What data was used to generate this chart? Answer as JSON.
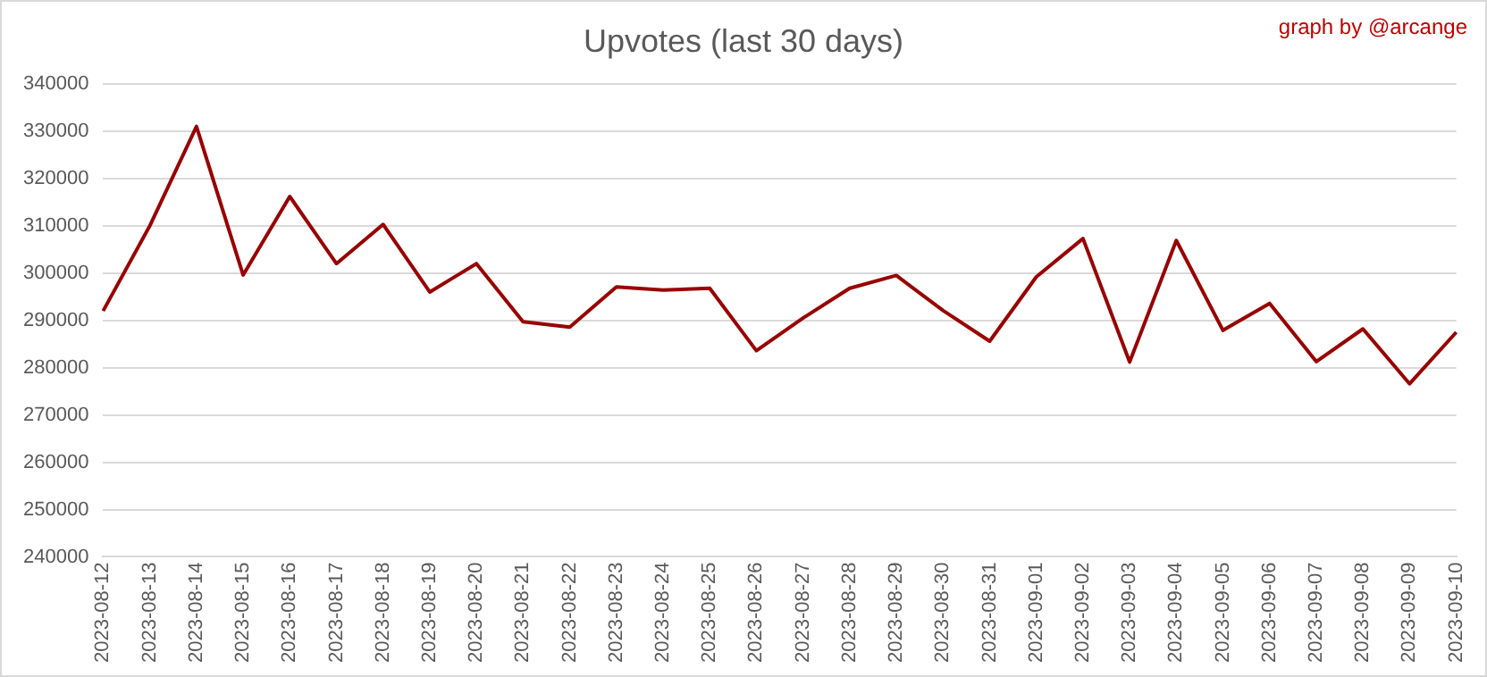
{
  "chart_data": {
    "type": "line",
    "title": "Upvotes (last 30 days)",
    "annotations": [
      "graph by @arcange"
    ],
    "categories": [
      "2023-08-12",
      "2023-08-13",
      "2023-08-14",
      "2023-08-15",
      "2023-08-16",
      "2023-08-17",
      "2023-08-18",
      "2023-08-19",
      "2023-08-20",
      "2023-08-21",
      "2023-08-22",
      "2023-08-23",
      "2023-08-24",
      "2023-08-25",
      "2023-08-26",
      "2023-08-27",
      "2023-08-28",
      "2023-08-29",
      "2023-08-30",
      "2023-08-31",
      "2023-09-01",
      "2023-09-02",
      "2023-09-03",
      "2023-09-04",
      "2023-09-05",
      "2023-09-06",
      "2023-09-07",
      "2023-09-08",
      "2023-09-09",
      "2023-09-10"
    ],
    "series": [
      {
        "color": "#990000",
        "values": [
          292000,
          310000,
          331000,
          299600,
          316200,
          302000,
          310300,
          296000,
          302000,
          289700,
          288600,
          297100,
          296400,
          296800,
          283600,
          290500,
          296800,
          299500,
          292100,
          285600,
          299200,
          307300,
          281200,
          306900,
          287900,
          293600,
          281300,
          288200,
          276600,
          287500
        ]
      }
    ],
    "ylim": [
      240000,
      340000
    ],
    "yticks": [
      240000,
      250000,
      260000,
      270000,
      280000,
      290000,
      300000,
      310000,
      320000,
      330000,
      340000
    ],
    "grid": "y",
    "legend": false,
    "marker": "none",
    "line_style": "solid"
  }
}
